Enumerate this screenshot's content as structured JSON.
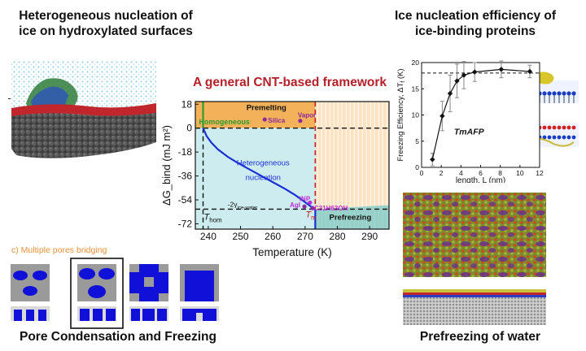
{
  "headings": {
    "top_left": [
      "Heterogeneous nucleation of",
      "ice on hydroxylated surfaces"
    ],
    "top_right": [
      "Ice nucleation efficiency of",
      "ice-binding proteins"
    ],
    "bottom_left": "Pore Condensation and Freezing",
    "bottom_right": "Prefreezing of water"
  },
  "pore_panel": {
    "label": "c) Multiple pores bridging",
    "label_color": "#e8913a"
  },
  "colors": {
    "framework_title": "#b5202a",
    "premelting_fill": "#f3b259",
    "heterogeneous_fill": "#cdecef",
    "prefreezing_fill": "#fbe3c3",
    "curve": "#1a2fd6",
    "homogeneous_line": "#2e9b2e",
    "tm_line": "#c81e1e",
    "points": "#8b2a9c",
    "inp": "#c02bd1",
    "pore_blue": "#1010d8",
    "pore_gray": "#9a9a9a"
  },
  "chart_data": [
    {
      "type": "line",
      "title": "A general CNT-based framework",
      "xlabel": "Temperature (K)",
      "ylabel": "ΔG_bind (mJ m²)",
      "xlim": [
        236,
        296
      ],
      "ylim": [
        -76,
        20
      ],
      "xticks": [
        240,
        250,
        260,
        270,
        280,
        290
      ],
      "yticks": [
        18,
        0,
        -18,
        -36,
        -54,
        -72
      ],
      "T_hom": 238.4,
      "T_m": 273.15,
      "ice_water_level": -61,
      "region_labels": {
        "premelting": "Premelting",
        "homogeneous": "Homogeneous",
        "heterogeneous": [
          "Heterogeneous",
          "nucleation"
        ],
        "prefreezing": "Prefreezing",
        "ice_water": "-2γ",
        "ice_water_sub": "ice-water",
        "t_hom": "T",
        "t_hom_sub": "hom",
        "t_m": "T",
        "t_m_sub": "m"
      },
      "series": [
        {
          "curve": "heterogeneous nucleation",
          "x": [
            238.4,
            239.5,
            241,
            243,
            246,
            249,
            252,
            255,
            258,
            261,
            264,
            267,
            269,
            271,
            272.3,
            273.15
          ],
          "y": [
            0,
            -6,
            -11,
            -16,
            -21.5,
            -26,
            -30,
            -34,
            -38,
            -42,
            -46,
            -50.5,
            -54,
            -57.5,
            -60,
            -61
          ]
        }
      ],
      "points": [
        {
          "name": "Silica",
          "x": 257.5,
          "y": 6.5
        },
        {
          "name": "Vapor",
          "x": 268.5,
          "y": 5.5
        },
        {
          "name": "INP",
          "x": 271.5,
          "y": -56
        },
        {
          "name": "AgI",
          "x": 269.8,
          "y": -59
        },
        {
          "name": "C31H63OH",
          "x": 272.3,
          "y": -60.2
        }
      ]
    },
    {
      "type": "line",
      "xlabel": "length, L (nm)",
      "ylabel": "Freezing Efficiency, ΔT",
      "ylabel_sub": "f",
      "ylabel_unit": "(K)",
      "xlim": [
        0,
        12
      ],
      "ylim": [
        0,
        20
      ],
      "xticks": [
        0,
        2,
        4,
        6,
        8,
        10,
        12
      ],
      "yticks": [
        0,
        5,
        10,
        15,
        20
      ],
      "annotation": "TmAFP",
      "plateau": 18,
      "series": [
        {
          "x": [
            1.1,
            2.1,
            2.9,
            3.6,
            4.3,
            5.4,
            8.1,
            11
          ],
          "y": [
            1.5,
            9.8,
            14.1,
            16.5,
            17.6,
            18.2,
            18.7,
            18.3
          ],
          "err": [
            1.2,
            2.8,
            3.5,
            3.2,
            2.6,
            1.8,
            1.6,
            1.2
          ]
        }
      ]
    }
  ]
}
